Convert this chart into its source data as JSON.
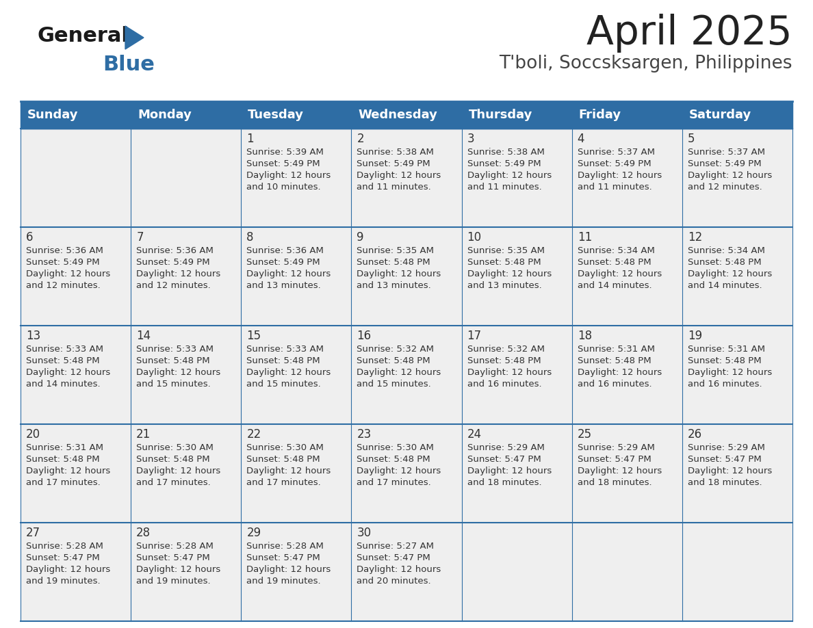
{
  "title": "April 2025",
  "subtitle": "T'boli, Soccsksargen, Philippines",
  "header_bg_color": "#2E6DA4",
  "header_text_color": "#FFFFFF",
  "cell_bg_color": "#EFEFEF",
  "day_number_color": "#333333",
  "cell_text_color": "#333333",
  "grid_line_color": "#2E6DA4",
  "days_of_week": [
    "Sunday",
    "Monday",
    "Tuesday",
    "Wednesday",
    "Thursday",
    "Friday",
    "Saturday"
  ],
  "title_color": "#222222",
  "subtitle_color": "#444444",
  "logo_general_color": "#1a1a1a",
  "logo_blue_color": "#2E6DA4",
  "weeks": [
    [
      {
        "day": 0,
        "sunrise": "",
        "sunset": "",
        "daylight": ""
      },
      {
        "day": 0,
        "sunrise": "",
        "sunset": "",
        "daylight": ""
      },
      {
        "day": 1,
        "sunrise": "5:39 AM",
        "sunset": "5:49 PM",
        "daylight": "10 minutes."
      },
      {
        "day": 2,
        "sunrise": "5:38 AM",
        "sunset": "5:49 PM",
        "daylight": "11 minutes."
      },
      {
        "day": 3,
        "sunrise": "5:38 AM",
        "sunset": "5:49 PM",
        "daylight": "11 minutes."
      },
      {
        "day": 4,
        "sunrise": "5:37 AM",
        "sunset": "5:49 PM",
        "daylight": "11 minutes."
      },
      {
        "day": 5,
        "sunrise": "5:37 AM",
        "sunset": "5:49 PM",
        "daylight": "12 minutes."
      }
    ],
    [
      {
        "day": 6,
        "sunrise": "5:36 AM",
        "sunset": "5:49 PM",
        "daylight": "12 minutes."
      },
      {
        "day": 7,
        "sunrise": "5:36 AM",
        "sunset": "5:49 PM",
        "daylight": "12 minutes."
      },
      {
        "day": 8,
        "sunrise": "5:36 AM",
        "sunset": "5:49 PM",
        "daylight": "13 minutes."
      },
      {
        "day": 9,
        "sunrise": "5:35 AM",
        "sunset": "5:48 PM",
        "daylight": "13 minutes."
      },
      {
        "day": 10,
        "sunrise": "5:35 AM",
        "sunset": "5:48 PM",
        "daylight": "13 minutes."
      },
      {
        "day": 11,
        "sunrise": "5:34 AM",
        "sunset": "5:48 PM",
        "daylight": "14 minutes."
      },
      {
        "day": 12,
        "sunrise": "5:34 AM",
        "sunset": "5:48 PM",
        "daylight": "14 minutes."
      }
    ],
    [
      {
        "day": 13,
        "sunrise": "5:33 AM",
        "sunset": "5:48 PM",
        "daylight": "14 minutes."
      },
      {
        "day": 14,
        "sunrise": "5:33 AM",
        "sunset": "5:48 PM",
        "daylight": "15 minutes."
      },
      {
        "day": 15,
        "sunrise": "5:33 AM",
        "sunset": "5:48 PM",
        "daylight": "15 minutes."
      },
      {
        "day": 16,
        "sunrise": "5:32 AM",
        "sunset": "5:48 PM",
        "daylight": "15 minutes."
      },
      {
        "day": 17,
        "sunrise": "5:32 AM",
        "sunset": "5:48 PM",
        "daylight": "16 minutes."
      },
      {
        "day": 18,
        "sunrise": "5:31 AM",
        "sunset": "5:48 PM",
        "daylight": "16 minutes."
      },
      {
        "day": 19,
        "sunrise": "5:31 AM",
        "sunset": "5:48 PM",
        "daylight": "16 minutes."
      }
    ],
    [
      {
        "day": 20,
        "sunrise": "5:31 AM",
        "sunset": "5:48 PM",
        "daylight": "17 minutes."
      },
      {
        "day": 21,
        "sunrise": "5:30 AM",
        "sunset": "5:48 PM",
        "daylight": "17 minutes."
      },
      {
        "day": 22,
        "sunrise": "5:30 AM",
        "sunset": "5:48 PM",
        "daylight": "17 minutes."
      },
      {
        "day": 23,
        "sunrise": "5:30 AM",
        "sunset": "5:48 PM",
        "daylight": "17 minutes."
      },
      {
        "day": 24,
        "sunrise": "5:29 AM",
        "sunset": "5:47 PM",
        "daylight": "18 minutes."
      },
      {
        "day": 25,
        "sunrise": "5:29 AM",
        "sunset": "5:47 PM",
        "daylight": "18 minutes."
      },
      {
        "day": 26,
        "sunrise": "5:29 AM",
        "sunset": "5:47 PM",
        "daylight": "18 minutes."
      }
    ],
    [
      {
        "day": 27,
        "sunrise": "5:28 AM",
        "sunset": "5:47 PM",
        "daylight": "19 minutes."
      },
      {
        "day": 28,
        "sunrise": "5:28 AM",
        "sunset": "5:47 PM",
        "daylight": "19 minutes."
      },
      {
        "day": 29,
        "sunrise": "5:28 AM",
        "sunset": "5:47 PM",
        "daylight": "19 minutes."
      },
      {
        "day": 30,
        "sunrise": "5:27 AM",
        "sunset": "5:47 PM",
        "daylight": "20 minutes."
      },
      {
        "day": 0,
        "sunrise": "",
        "sunset": "",
        "daylight": ""
      },
      {
        "day": 0,
        "sunrise": "",
        "sunset": "",
        "daylight": ""
      },
      {
        "day": 0,
        "sunrise": "",
        "sunset": "",
        "daylight": ""
      }
    ]
  ],
  "fig_width": 11.88,
  "fig_height": 9.18
}
